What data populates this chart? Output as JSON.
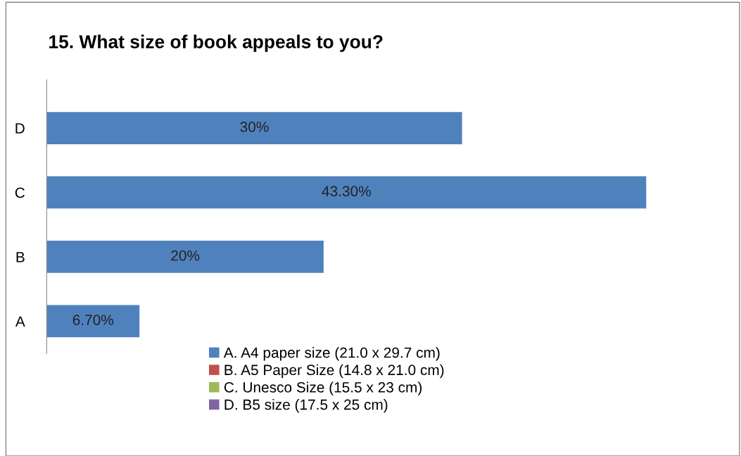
{
  "chart_data": {
    "type": "bar",
    "orientation": "horizontal",
    "title": "15. What size of book appeals to you?",
    "categories": [
      "D",
      "C",
      "B",
      "A"
    ],
    "series": [
      {
        "name": "A. A4 paper size (21.0 x 29.7 cm)",
        "color": "#4f81bd",
        "values": [
          30,
          43.3,
          20,
          6.7
        ],
        "value_labels": [
          "30%",
          "43.30%",
          "20%",
          "6.70%"
        ]
      },
      {
        "name": "B. A5 Paper Size (14.8 x 21.0 cm)",
        "color": "#c0504d",
        "values": [
          null,
          null,
          null,
          null
        ]
      },
      {
        "name": "C. Unesco Size (15.5 x 23 cm)",
        "color": "#9bbb59",
        "values": [
          null,
          null,
          null,
          null
        ]
      },
      {
        "name": "D. B5 size (17.5 x 25 cm)",
        "color": "#8064a2",
        "values": [
          null,
          null,
          null,
          null
        ]
      }
    ],
    "tick_labels": "y",
    "grid": false,
    "legend": "bottom"
  }
}
